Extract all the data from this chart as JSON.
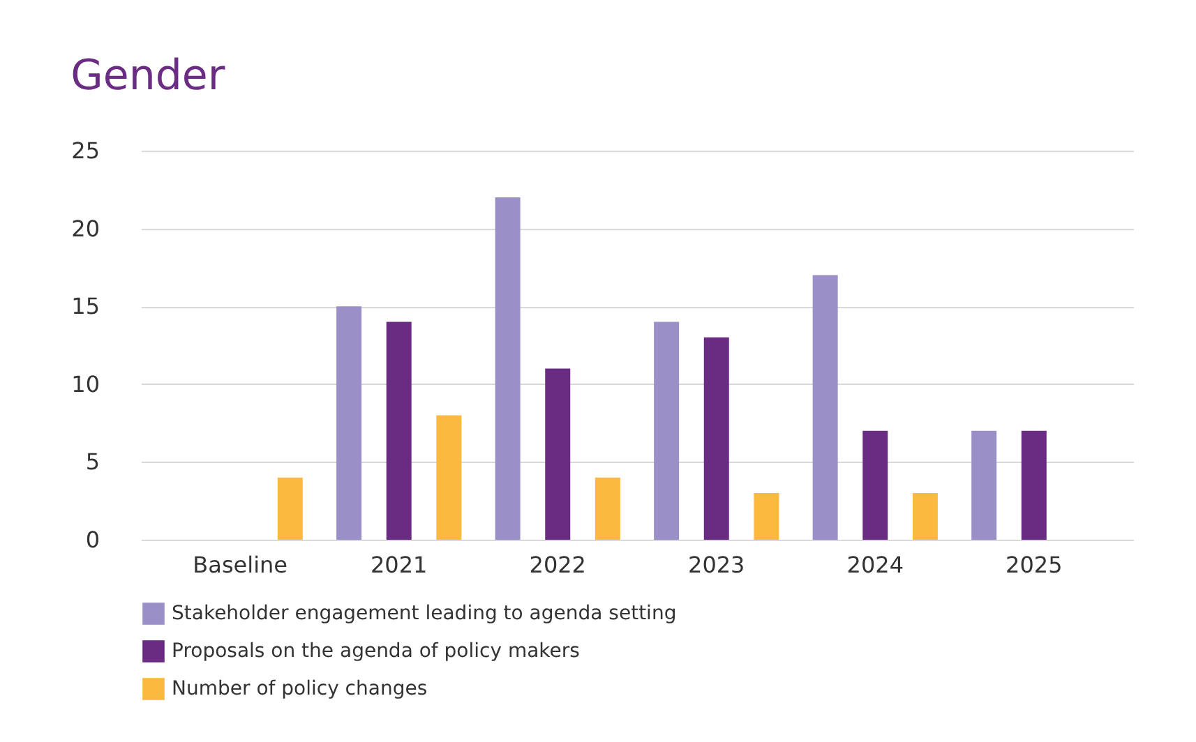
{
  "chart_data": {
    "type": "bar",
    "title": "Gender",
    "categories": [
      "Baseline",
      "2021",
      "2022",
      "2023",
      "2024",
      "2025"
    ],
    "series": [
      {
        "name": "Stakeholder engagement leading to agenda setting",
        "color": "#9b8fc8",
        "values": [
          null,
          15,
          22,
          14,
          17,
          7
        ]
      },
      {
        "name": "Proposals on the agenda of policy makers",
        "color": "#6a2c82",
        "values": [
          null,
          14,
          11,
          13,
          7,
          7
        ]
      },
      {
        "name": "Number of policy changes",
        "color": "#fbb940",
        "values": [
          4,
          8,
          4,
          3,
          3,
          null
        ]
      }
    ],
    "ylim": [
      0,
      25
    ],
    "yticks": [
      0,
      5,
      10,
      15,
      20,
      25
    ],
    "grid": "y",
    "legend": "bottom"
  }
}
